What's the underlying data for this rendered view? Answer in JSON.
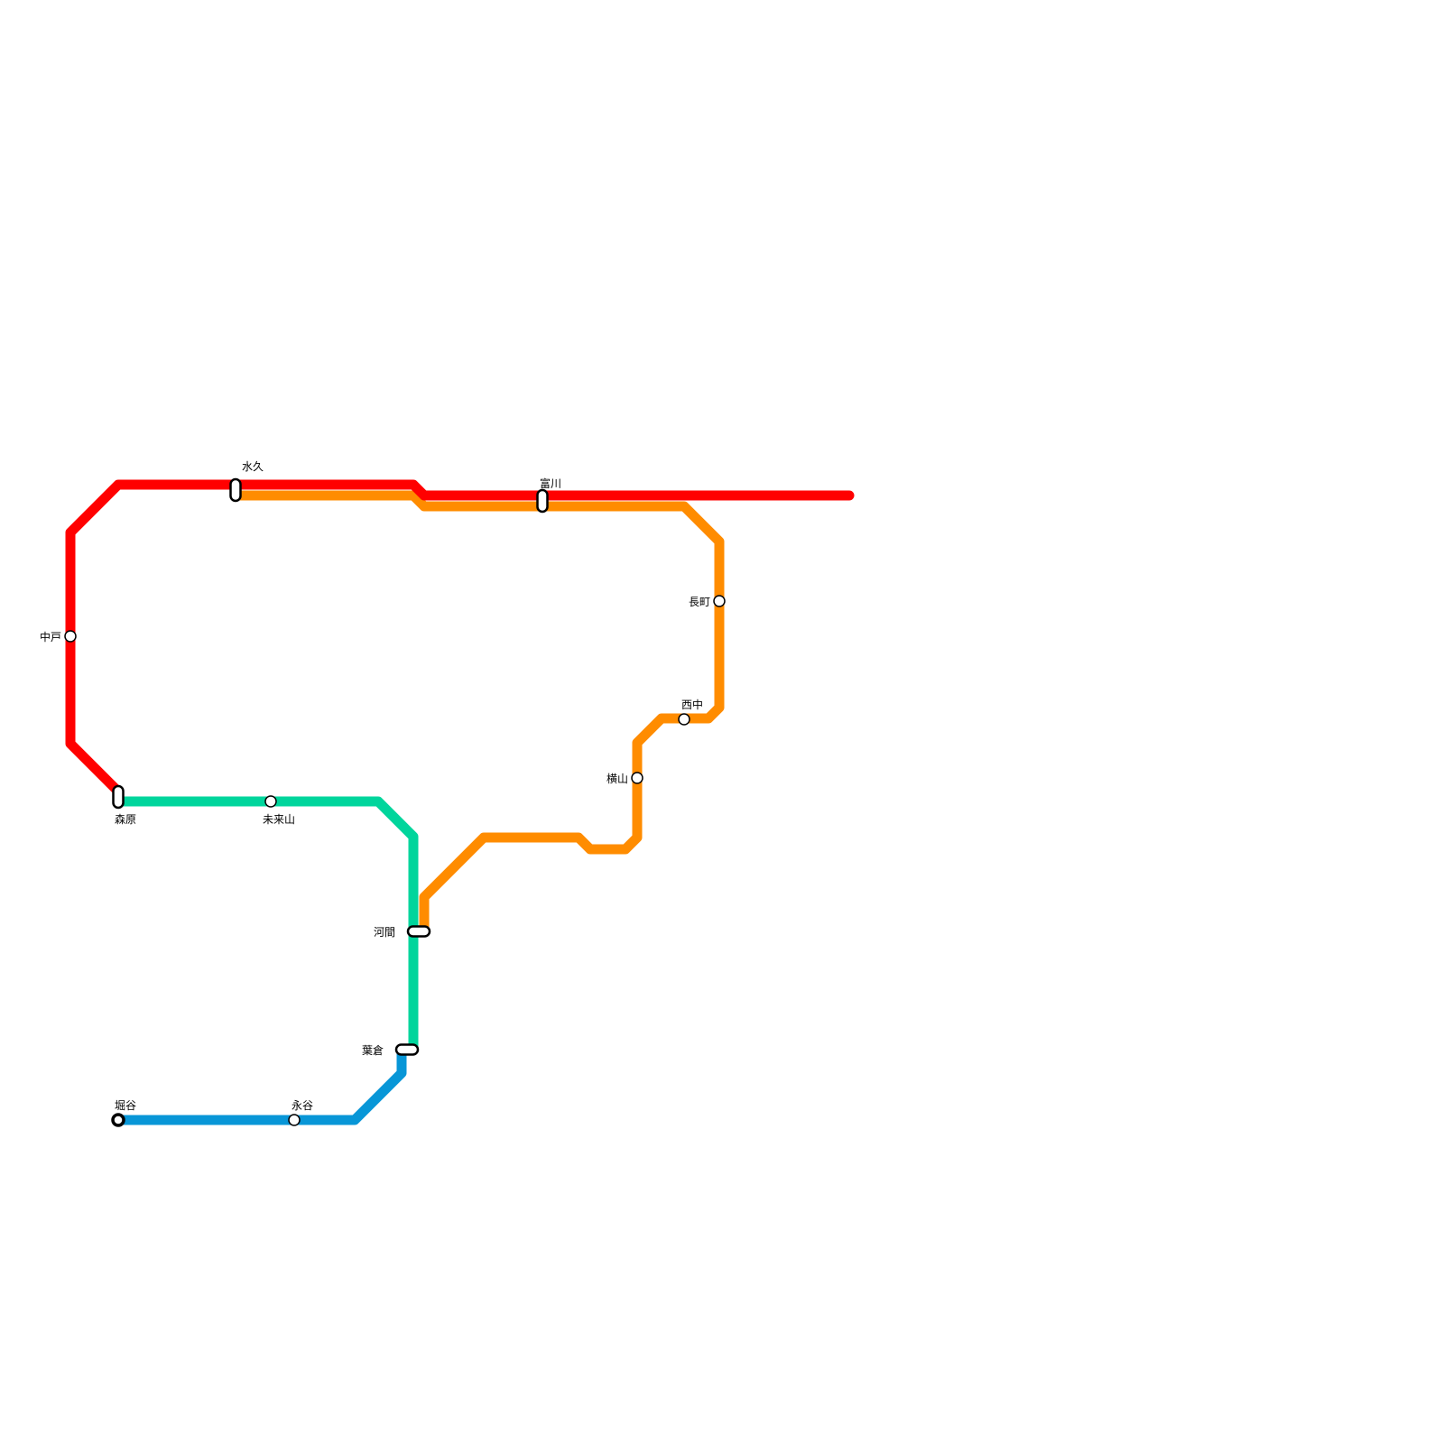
{
  "lines": {
    "red": {
      "color": "#ff0000"
    },
    "orange": {
      "color": "#ff8c00"
    },
    "green": {
      "color": "#00d59c"
    },
    "blue": {
      "color": "#0896d7"
    }
  },
  "stations": {
    "mizuhisa": "水久",
    "tomikawa": "富川",
    "nakado": "中戸",
    "morihara": "森原",
    "miraiyama": "未来山",
    "kawama": "河間",
    "hakura": "葉倉",
    "horiya": "堀谷",
    "nagaya": "永谷",
    "nagamachi": "長町",
    "nishinaka": "西中",
    "yokoyama": "横山"
  }
}
